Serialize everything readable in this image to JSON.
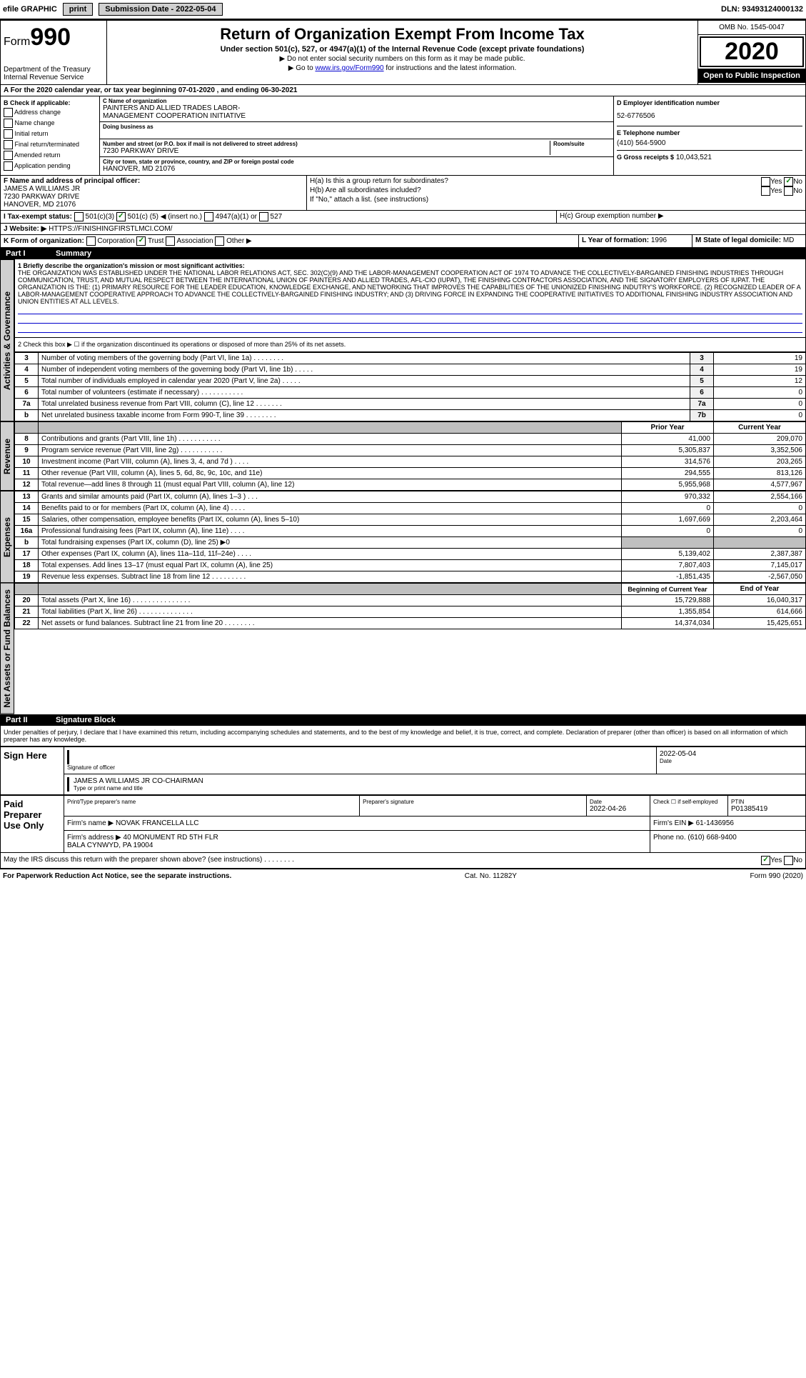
{
  "top_bar": {
    "efile": "efile GRAPHIC",
    "print": "print",
    "sub_label": "Submission Date - 2022-05-04",
    "dln": "DLN: 93493124000132"
  },
  "header": {
    "form_label": "Form",
    "form_num": "990",
    "dept": "Department of the Treasury\nInternal Revenue Service",
    "title": "Return of Organization Exempt From Income Tax",
    "subtitle": "Under section 501(c), 527, or 4947(a)(1) of the Internal Revenue Code (except private foundations)",
    "note1": "▶ Do not enter social security numbers on this form as it may be made public.",
    "note2_prefix": "▶ Go to ",
    "note2_link": "www.irs.gov/Form990",
    "note2_suffix": " for instructions and the latest information.",
    "omb": "OMB No. 1545-0047",
    "year": "2020",
    "inspect": "Open to Public Inspection"
  },
  "line_a": "A   For the 2020 calendar year, or tax year beginning 07-01-2020   , and ending 06-30-2021",
  "section_b": {
    "label": "B Check if applicable:",
    "options": [
      "Address change",
      "Name change",
      "Initial return",
      "Final return/terminated",
      "Amended return",
      "Application pending"
    ]
  },
  "org": {
    "c_label": "C Name of organization",
    "name": "PAINTERS AND ALLIED TRADES LABOR-\nMANAGEMENT COOPERATION INITIATIVE",
    "dba_label": "Doing business as",
    "addr_label": "Number and street (or P.O. box if mail is not delivered to street address)",
    "addr": "7230 PARKWAY DRIVE",
    "room_label": "Room/suite",
    "city_label": "City or town, state or province, country, and ZIP or foreign postal code",
    "city": "HANOVER, MD  21076"
  },
  "d": {
    "label": "D Employer identification number",
    "value": "52-6776506"
  },
  "e": {
    "label": "E Telephone number",
    "value": "(410) 564-5900"
  },
  "g": {
    "label": "G Gross receipts $",
    "value": "10,043,521"
  },
  "f": {
    "label": "F  Name and address of principal officer:",
    "name": "JAMES A WILLIAMS JR",
    "addr1": "7230 PARKWAY DRIVE",
    "addr2": "HANOVER, MD  21076"
  },
  "h": {
    "a": "H(a)  Is this a group return for subordinates?",
    "b": "H(b)  Are all subordinates included?",
    "note": "If \"No,\" attach a list. (see instructions)",
    "c": "H(c)  Group exemption number ▶",
    "yes": "Yes",
    "no": "No"
  },
  "i": {
    "label": "I   Tax-exempt status:",
    "opt1": "501(c)(3)",
    "opt2_pre": "501(c) (",
    "opt2_val": "5",
    "opt2_post": ") ◀ (insert no.)",
    "opt3": "4947(a)(1) or",
    "opt4": "527"
  },
  "j": {
    "label": "J   Website: ▶",
    "value": "HTTPS://FINISHINGFIRSTLMCI.COM/"
  },
  "k": {
    "label": "K Form of organization:",
    "corp": "Corporation",
    "trust": "Trust",
    "assoc": "Association",
    "other": "Other ▶"
  },
  "l": {
    "label": "L Year of formation:",
    "value": "1996"
  },
  "m": {
    "label": "M State of legal domicile:",
    "value": "MD"
  },
  "part1": {
    "header": "Part I",
    "title": "Summary",
    "line1_label": "1  Briefly describe the organization's mission or most significant activities:",
    "mission": "THE ORGANIZATION WAS ESTABLISHED UNDER THE NATIONAL LABOR RELATIONS ACT, SEC. 302(C)(9) AND THE LABOR-MANAGEMENT COOPERATION ACT OF 1974 TO ADVANCE THE COLLECTIVELY-BARGAINED FINISHING INDUSTRIES THROUGH COMMUNICATION, TRUST, AND MUTUAL RESPECT BETWEEN THE INTERNATIONAL UNION OF PAINTERS AND ALLIED TRADES, AFL-CIO (IUPAT), THE FINISHING CONTRACTORS ASSOCIATION, AND THE SIGNATORY EMPLOYERS OF IUPAT. THE ORGANIZATION IS THE: (1) PRIMARY RESOURCE FOR THE LEADER EDUCATION, KNOWLEDGE EXCHANGE, AND NETWORKING THAT IMPROVES THE CAPABILITIES OF THE UNIONIZED FINISHING INDUTRY'S WORKFORCE. (2) RECOGNIZED LEADER OF A LABOR-MANAGEMENT COOPERATIVE APPROACH TO ADVANCE THE COLLECTIVELY-BARGAINED FINISHING INDUSTRY; AND (3) DRIVING FORCE IN EXPANDING THE COOPERATIVE INITIATIVES TO ADDITIONAL FINISHING INDUSTRY ASSOCIATION AND UNION ENTITIES AT ALL LEVELS.",
    "line2": "2   Check this box ▶ ☐ if the organization discontinued its operations or disposed of more than 25% of its net assets.",
    "sidebar_activities": "Activities & Governance",
    "sidebar_revenue": "Revenue",
    "sidebar_expenses": "Expenses",
    "sidebar_netassets": "Net Assets or Fund Balances",
    "col_prior": "Prior Year",
    "col_current": "Current Year",
    "col_boy": "Beginning of Current Year",
    "col_eoy": "End of Year",
    "rows_top": [
      {
        "n": "3",
        "label": "Number of voting members of the governing body (Part VI, line 1a)   .   .   .   .   .   .   .   .",
        "box": "3",
        "val": "19"
      },
      {
        "n": "4",
        "label": "Number of independent voting members of the governing body (Part VI, line 1b)   .   .   .   .   .",
        "box": "4",
        "val": "19"
      },
      {
        "n": "5",
        "label": "Total number of individuals employed in calendar year 2020 (Part V, line 2a)   .   .   .   .   .",
        "box": "5",
        "val": "12"
      },
      {
        "n": "6",
        "label": "Total number of volunteers (estimate if necessary)   .   .   .   .   .   .   .   .   .   .   .",
        "box": "6",
        "val": "0"
      },
      {
        "n": "7a",
        "label": "Total unrelated business revenue from Part VIII, column (C), line 12   .   .   .   .   .   .   .",
        "box": "7a",
        "val": "0"
      },
      {
        "n": "b",
        "label": "Net unrelated business taxable income from Form 990-T, line 39   .   .   .   .   .   .   .   .",
        "box": "7b",
        "val": "0"
      }
    ],
    "rows_revenue": [
      {
        "n": "8",
        "label": "Contributions and grants (Part VIII, line 1h)   .   .   .   .   .   .   .   .   .   .   .",
        "prior": "41,000",
        "cur": "209,070"
      },
      {
        "n": "9",
        "label": "Program service revenue (Part VIII, line 2g)   .   .   .   .   .   .   .   .   .   .   .",
        "prior": "5,305,837",
        "cur": "3,352,506"
      },
      {
        "n": "10",
        "label": "Investment income (Part VIII, column (A), lines 3, 4, and 7d )   .   .   .   .",
        "prior": "314,576",
        "cur": "203,265"
      },
      {
        "n": "11",
        "label": "Other revenue (Part VIII, column (A), lines 5, 6d, 8c, 9c, 10c, and 11e)",
        "prior": "294,555",
        "cur": "813,126"
      },
      {
        "n": "12",
        "label": "Total revenue—add lines 8 through 11 (must equal Part VIII, column (A), line 12)",
        "prior": "5,955,968",
        "cur": "4,577,967"
      }
    ],
    "rows_expenses": [
      {
        "n": "13",
        "label": "Grants and similar amounts paid (Part IX, column (A), lines 1–3 )   .   .   .",
        "prior": "970,332",
        "cur": "2,554,166"
      },
      {
        "n": "14",
        "label": "Benefits paid to or for members (Part IX, column (A), line 4)   .   .   .   .",
        "prior": "0",
        "cur": "0"
      },
      {
        "n": "15",
        "label": "Salaries, other compensation, employee benefits (Part IX, column (A), lines 5–10)",
        "prior": "1,697,669",
        "cur": "2,203,464"
      },
      {
        "n": "16a",
        "label": "Professional fundraising fees (Part IX, column (A), line 11e)   .   .   .   .",
        "prior": "0",
        "cur": "0"
      },
      {
        "n": "b",
        "label": "Total fundraising expenses (Part IX, column (D), line 25) ▶0",
        "prior": "",
        "cur": "",
        "shaded": true
      },
      {
        "n": "17",
        "label": "Other expenses (Part IX, column (A), lines 11a–11d, 11f–24e)   .   .   .   .",
        "prior": "5,139,402",
        "cur": "2,387,387"
      },
      {
        "n": "18",
        "label": "Total expenses. Add lines 13–17 (must equal Part IX, column (A), line 25)",
        "prior": "7,807,403",
        "cur": "7,145,017"
      },
      {
        "n": "19",
        "label": "Revenue less expenses. Subtract line 18 from line 12   .   .   .   .   .   .   .   .   .",
        "prior": "-1,851,435",
        "cur": "-2,567,050"
      }
    ],
    "rows_netassets": [
      {
        "n": "20",
        "label": "Total assets (Part X, line 16)   .   .   .   .   .   .   .   .   .   .   .   .   .   .   .",
        "prior": "15,729,888",
        "cur": "16,040,317"
      },
      {
        "n": "21",
        "label": "Total liabilities (Part X, line 26)   .   .   .   .   .   .   .   .   .   .   .   .   .   .",
        "prior": "1,355,854",
        "cur": "614,666"
      },
      {
        "n": "22",
        "label": "Net assets or fund balances. Subtract line 21 from line 20   .   .   .   .   .   .   .   .",
        "prior": "14,374,034",
        "cur": "15,425,651"
      }
    ]
  },
  "part2": {
    "header": "Part II",
    "title": "Signature Block",
    "declaration": "Under penalties of perjury, I declare that I have examined this return, including accompanying schedules and statements, and to the best of my knowledge and belief, it is true, correct, and complete. Declaration of preparer (other than officer) is based on all information of which preparer has any knowledge."
  },
  "sign": {
    "label": "Sign Here",
    "sig_label": "Signature of officer",
    "date_label": "Date",
    "date": "2022-05-04",
    "name": "JAMES A WILLIAMS JR  CO-CHAIRMAN",
    "name_label": "Type or print name and title"
  },
  "preparer": {
    "label": "Paid Preparer Use Only",
    "name_label": "Print/Type preparer's name",
    "sig_label": "Preparer's signature",
    "date_label": "Date",
    "date": "2022-04-26",
    "check_label": "Check ☐ if self-employed",
    "ptin_label": "PTIN",
    "ptin": "P01385419",
    "firm_name_label": "Firm's name    ▶",
    "firm_name": "NOVAK FRANCELLA LLC",
    "firm_ein_label": "Firm's EIN ▶",
    "firm_ein": "61-1436956",
    "firm_addr_label": "Firm's address ▶",
    "firm_addr": "40 MONUMENT RD 5TH FLR\nBALA CYNWYD, PA  19004",
    "phone_label": "Phone no.",
    "phone": "(610) 668-9400"
  },
  "discuss": {
    "label": "May the IRS discuss this return with the preparer shown above? (see instructions)   .   .   .   .   .   .   .   .",
    "yes": "Yes",
    "no": "No"
  },
  "footer": {
    "left": "For Paperwork Reduction Act Notice, see the separate instructions.",
    "center": "Cat. No. 11282Y",
    "right": "Form 990 (2020)"
  }
}
